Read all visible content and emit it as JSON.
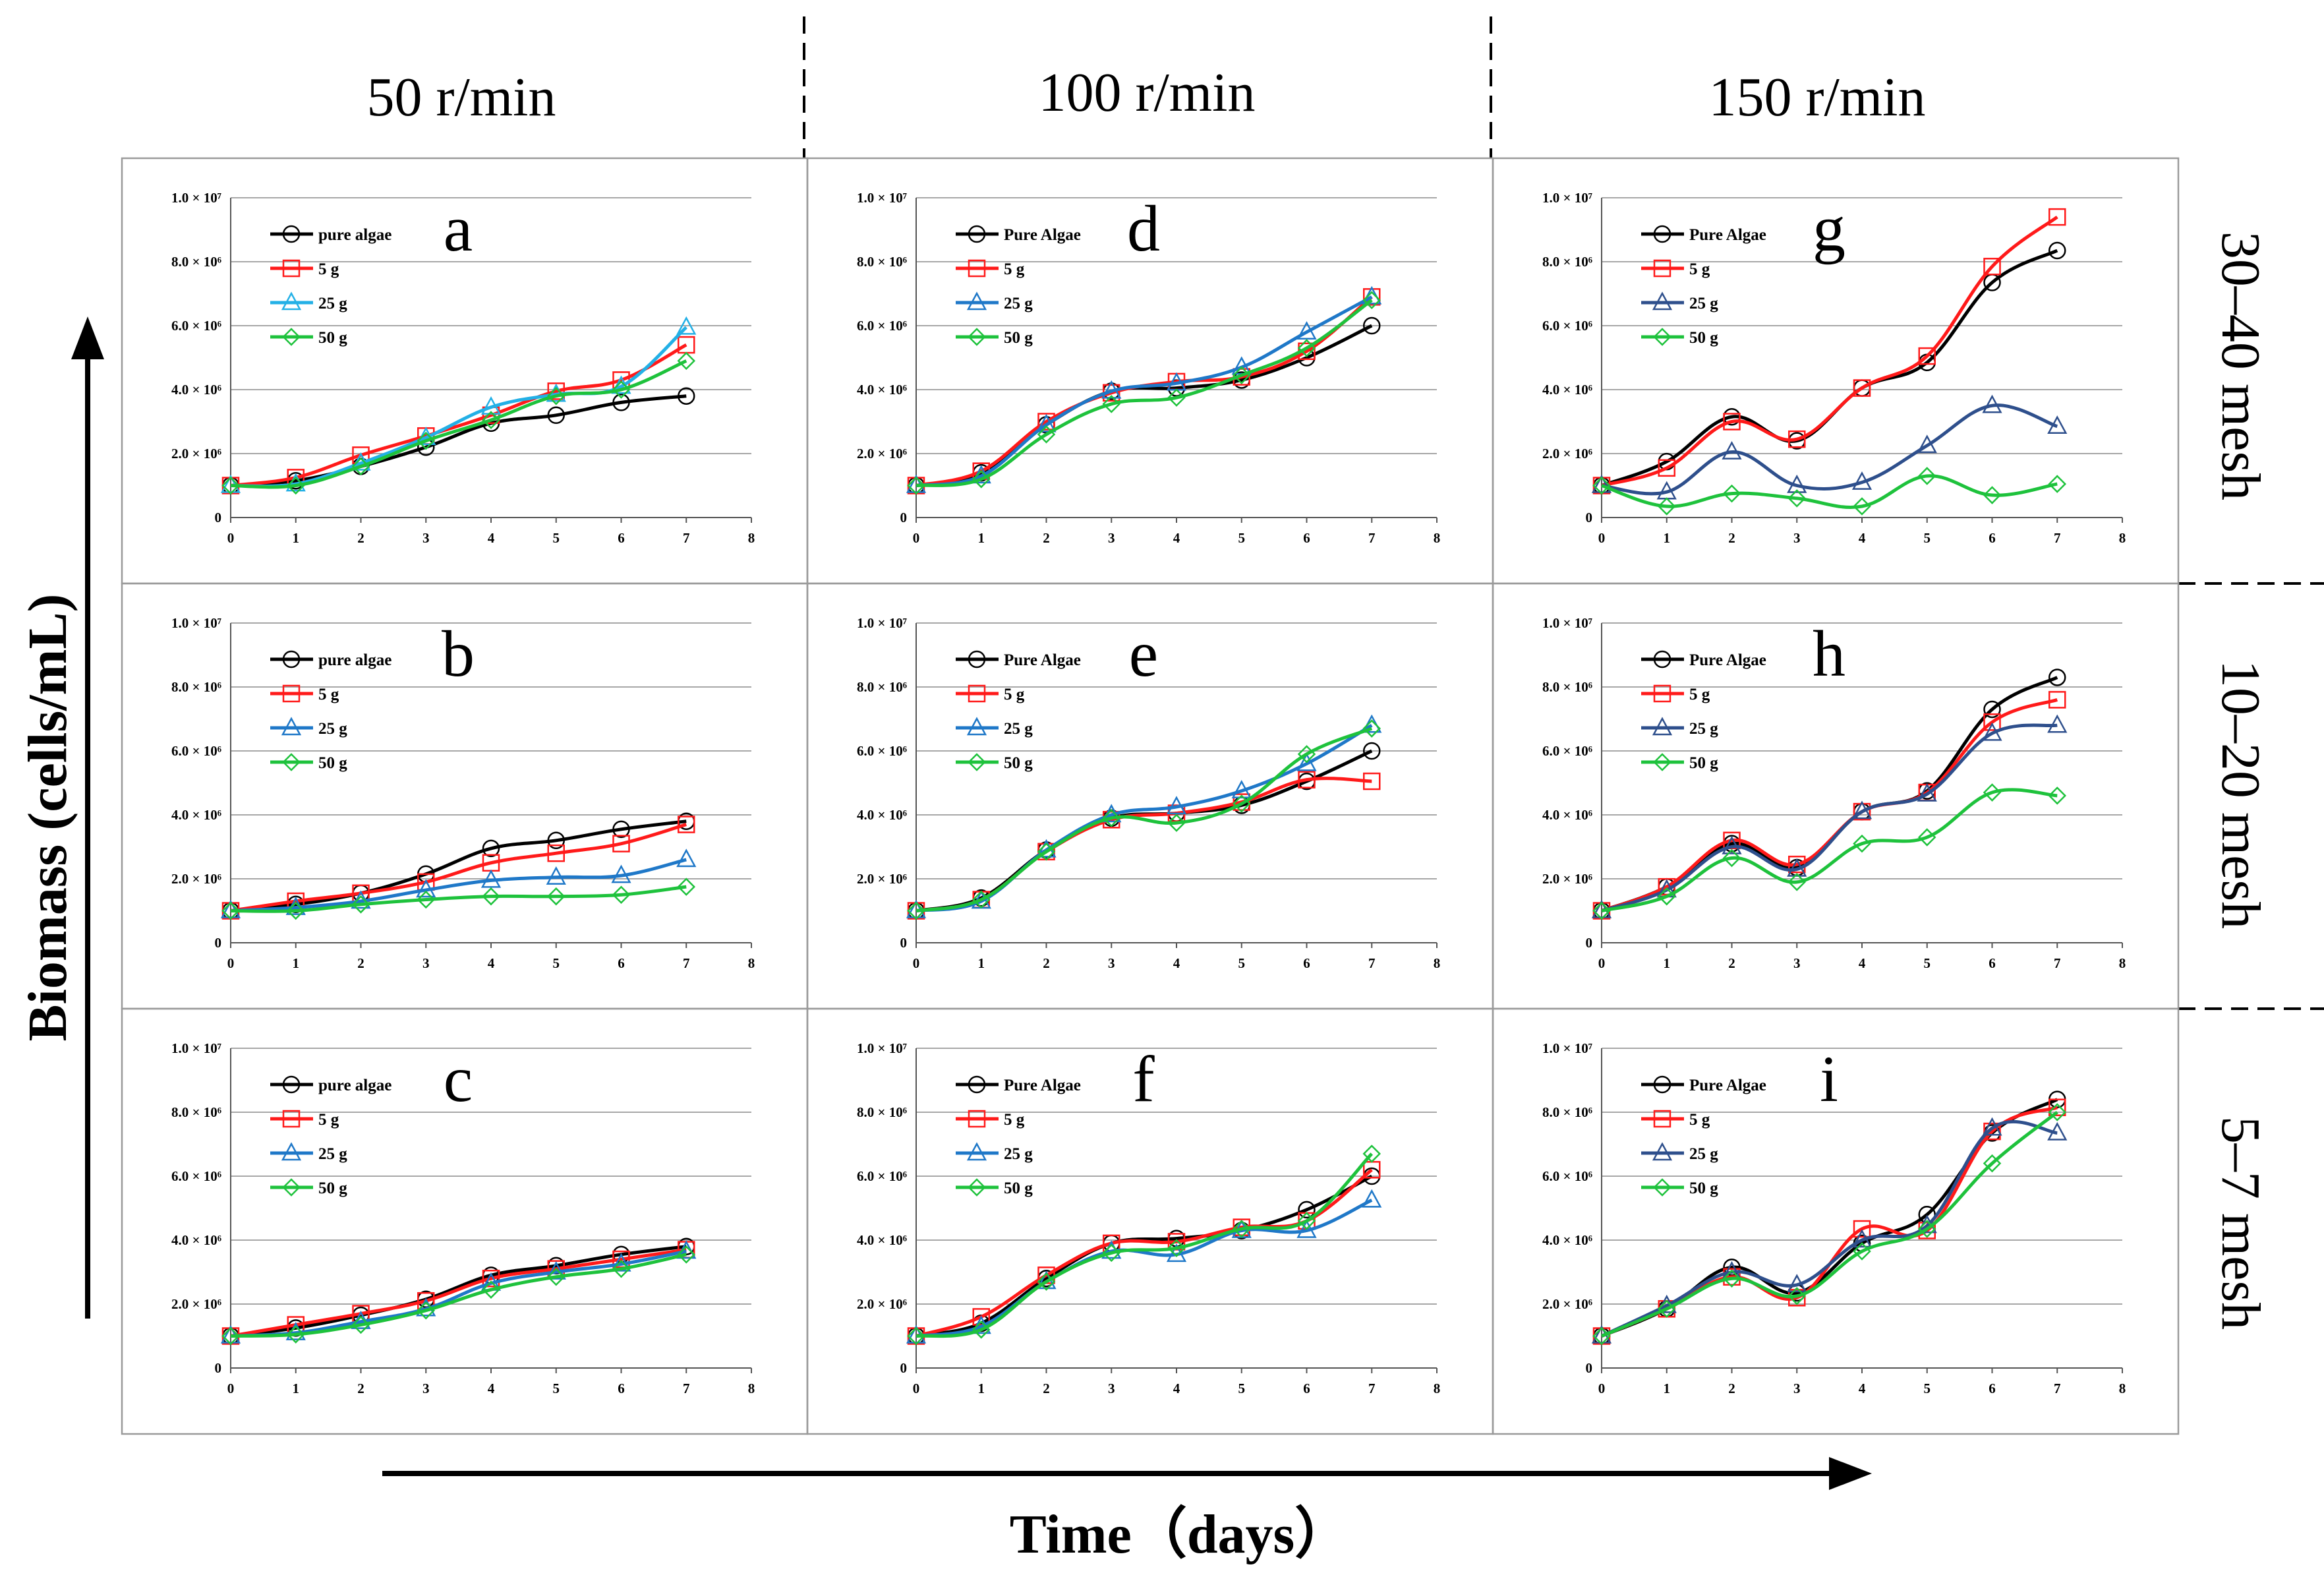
{
  "labels": {
    "column_headers": [
      "50 r/min",
      "100 r/min",
      "150 r/min"
    ],
    "row_headers": [
      "30–40 mesh",
      "10–20 mesh",
      "5–7 mesh"
    ],
    "y_axis": "Biomass (cells/mL)",
    "x_axis": "Time（days）"
  },
  "colors": {
    "pure_algae": "#000000",
    "s5": "#ff1a1a",
    "s25": "#1f78c8",
    "s25_light": "#23b0e6",
    "s25_dark": "#2e4f8c",
    "s50": "#1ec23c"
  },
  "chart_data": [
    {
      "type": "line",
      "panel": "a",
      "xlim": [
        0,
        8
      ],
      "ylim": [
        0,
        10000000
      ],
      "x_ticks": [
        "0",
        "1",
        "2",
        "3",
        "4",
        "5",
        "6",
        "7",
        "8"
      ],
      "y_ticks": [
        "0",
        "2.0 × 10⁶",
        "4.0 × 10⁶",
        "6.0 × 10⁶",
        "8.0 × 10⁶",
        "1.0 × 10⁷"
      ],
      "x": [
        0,
        1,
        2,
        3,
        4,
        5,
        6,
        7
      ],
      "series": [
        {
          "name": "pure algae",
          "values": [
            1000000,
            1150000,
            1600000,
            2200000,
            2950000,
            3200000,
            3600000,
            3800000
          ]
        },
        {
          "name": "5 g",
          "values": [
            1000000,
            1250000,
            1950000,
            2550000,
            3200000,
            3950000,
            4300000,
            5400000
          ]
        },
        {
          "name": "25 g",
          "values": [
            1000000,
            1050000,
            1700000,
            2500000,
            3450000,
            3850000,
            4100000,
            5950000
          ]
        },
        {
          "name": "50 g",
          "values": [
            1000000,
            1000000,
            1600000,
            2400000,
            3050000,
            3800000,
            4000000,
            4900000
          ]
        }
      ]
    },
    {
      "type": "line",
      "panel": "b",
      "xlim": [
        0,
        8
      ],
      "ylim": [
        0,
        10000000
      ],
      "x_ticks": [
        "0",
        "1",
        "2",
        "3",
        "4",
        "5",
        "6",
        "7",
        "8"
      ],
      "y_ticks": [
        "0",
        "2.0 × 10⁶",
        "4.0 × 10⁶",
        "6.0 × 10⁶",
        "8.0 × 10⁶",
        "1.0 × 10⁷"
      ],
      "x": [
        0,
        1,
        2,
        3,
        4,
        5,
        6,
        7
      ],
      "series": [
        {
          "name": "pure algae",
          "values": [
            1000000,
            1200000,
            1550000,
            2150000,
            2950000,
            3200000,
            3550000,
            3800000
          ]
        },
        {
          "name": "5 g",
          "values": [
            1000000,
            1300000,
            1550000,
            1900000,
            2500000,
            2800000,
            3100000,
            3700000
          ]
        },
        {
          "name": "25 g",
          "values": [
            1000000,
            1100000,
            1300000,
            1650000,
            1950000,
            2050000,
            2100000,
            2600000
          ]
        },
        {
          "name": "50 g",
          "values": [
            1000000,
            1000000,
            1200000,
            1350000,
            1450000,
            1450000,
            1500000,
            1750000
          ]
        }
      ]
    },
    {
      "type": "line",
      "panel": "c",
      "xlim": [
        0,
        8
      ],
      "ylim": [
        0,
        10000000
      ],
      "x_ticks": [
        "0",
        "1",
        "2",
        "3",
        "4",
        "5",
        "6",
        "7",
        "8"
      ],
      "y_ticks": [
        "0",
        "2.0 × 10⁶",
        "4.0 × 10⁶",
        "6.0 × 10⁶",
        "8.0 × 10⁶",
        "1.0 × 10⁷"
      ],
      "x": [
        0,
        1,
        2,
        3,
        4,
        5,
        6,
        7
      ],
      "series": [
        {
          "name": "pure algae",
          "values": [
            1000000,
            1250000,
            1650000,
            2150000,
            2900000,
            3200000,
            3550000,
            3800000
          ]
        },
        {
          "name": "5 g",
          "values": [
            1000000,
            1350000,
            1700000,
            2100000,
            2800000,
            3100000,
            3400000,
            3700000
          ]
        },
        {
          "name": "25 g",
          "values": [
            1000000,
            1100000,
            1450000,
            1850000,
            2650000,
            3000000,
            3250000,
            3650000
          ]
        },
        {
          "name": "50 g",
          "values": [
            1000000,
            1050000,
            1350000,
            1800000,
            2450000,
            2850000,
            3100000,
            3550000
          ]
        }
      ]
    },
    {
      "type": "line",
      "panel": "d",
      "xlim": [
        0,
        8
      ],
      "ylim": [
        0,
        10000000
      ],
      "x_ticks": [
        "0",
        "1",
        "2",
        "3",
        "4",
        "5",
        "6",
        "7",
        "8"
      ],
      "y_ticks": [
        "0",
        "2.0 × 10⁶",
        "4.0 × 10⁶",
        "6.0 × 10⁶",
        "8.0 × 10⁶",
        "1.0 × 10⁷"
      ],
      "x": [
        0,
        1,
        2,
        3,
        4,
        5,
        6,
        7
      ],
      "series": [
        {
          "name": "Pure Algae",
          "values": [
            1000000,
            1400000,
            2900000,
            3950000,
            4050000,
            4300000,
            5000000,
            6000000
          ]
        },
        {
          "name": "5 g",
          "values": [
            1000000,
            1450000,
            3000000,
            3900000,
            4250000,
            4400000,
            5200000,
            6900000
          ]
        },
        {
          "name": "25 g",
          "values": [
            1000000,
            1300000,
            2900000,
            3950000,
            4200000,
            4700000,
            5800000,
            6900000
          ]
        },
        {
          "name": "50 g",
          "values": [
            1000000,
            1200000,
            2600000,
            3550000,
            3750000,
            4450000,
            5300000,
            6800000
          ]
        }
      ]
    },
    {
      "type": "line",
      "panel": "e",
      "xlim": [
        0,
        8
      ],
      "ylim": [
        0,
        10000000
      ],
      "x_ticks": [
        "0",
        "1",
        "2",
        "3",
        "4",
        "5",
        "6",
        "7",
        "8"
      ],
      "y_ticks": [
        "0",
        "2.0 × 10⁶",
        "4.0 × 10⁶",
        "6.0 × 10⁶",
        "8.0 × 10⁶",
        "1.0 × 10⁷"
      ],
      "x": [
        0,
        1,
        2,
        3,
        4,
        5,
        6,
        7
      ],
      "series": [
        {
          "name": "Pure Algae",
          "values": [
            1000000,
            1400000,
            2900000,
            3900000,
            4050000,
            4300000,
            5050000,
            6000000
          ]
        },
        {
          "name": "5 g",
          "values": [
            1000000,
            1350000,
            2850000,
            3850000,
            4050000,
            4400000,
            5100000,
            5050000
          ]
        },
        {
          "name": "25 g",
          "values": [
            1000000,
            1300000,
            2900000,
            4000000,
            4250000,
            4750000,
            5600000,
            6800000
          ]
        },
        {
          "name": "50 g",
          "values": [
            1000000,
            1350000,
            2850000,
            3900000,
            3750000,
            4350000,
            5900000,
            6700000
          ]
        }
      ]
    },
    {
      "type": "line",
      "panel": "f",
      "xlim": [
        0,
        8
      ],
      "ylim": [
        0,
        10000000
      ],
      "x_ticks": [
        "0",
        "1",
        "2",
        "3",
        "4",
        "5",
        "6",
        "7",
        "8"
      ],
      "y_ticks": [
        "0",
        "2.0 × 10⁶",
        "4.0 × 10⁶",
        "6.0 × 10⁶",
        "8.0 × 10⁶",
        "1.0 × 10⁷"
      ],
      "x": [
        0,
        1,
        2,
        3,
        4,
        5,
        6,
        7
      ],
      "series": [
        {
          "name": "Pure Algae",
          "values": [
            1000000,
            1400000,
            2800000,
            3900000,
            4050000,
            4300000,
            4950000,
            6000000
          ]
        },
        {
          "name": "5 g",
          "values": [
            1000000,
            1600000,
            2900000,
            3900000,
            3950000,
            4400000,
            4600000,
            6200000
          ]
        },
        {
          "name": "25 g",
          "values": [
            1000000,
            1300000,
            2700000,
            3650000,
            3550000,
            4300000,
            4300000,
            5250000
          ]
        },
        {
          "name": "50 g",
          "values": [
            1000000,
            1200000,
            2700000,
            3600000,
            3750000,
            4350000,
            4600000,
            6700000
          ]
        }
      ]
    },
    {
      "type": "line",
      "panel": "g",
      "xlim": [
        0,
        8
      ],
      "ylim": [
        0,
        10000000
      ],
      "x_ticks": [
        "0",
        "1",
        "2",
        "3",
        "4",
        "5",
        "6",
        "7",
        "8"
      ],
      "y_ticks": [
        "0",
        "2.0 × 10⁶",
        "4.0 × 10⁶",
        "6.0 × 10⁶",
        "8.0 × 10⁶",
        "1.0 × 10⁷"
      ],
      "x": [
        0,
        1,
        2,
        3,
        4,
        5,
        6,
        7
      ],
      "series": [
        {
          "name": "Pure Algae",
          "values": [
            1000000,
            1750000,
            3150000,
            2400000,
            4050000,
            4850000,
            7350000,
            8350000
          ]
        },
        {
          "name": "5 g",
          "values": [
            1000000,
            1550000,
            3000000,
            2450000,
            4050000,
            5050000,
            7850000,
            9400000
          ]
        },
        {
          "name": "25 g",
          "values": [
            1000000,
            800000,
            2050000,
            1000000,
            1100000,
            2250000,
            3500000,
            2850000
          ]
        },
        {
          "name": "50 g",
          "values": [
            1000000,
            350000,
            750000,
            600000,
            350000,
            1300000,
            700000,
            1050000
          ]
        }
      ]
    },
    {
      "type": "line",
      "panel": "h",
      "xlim": [
        0,
        8
      ],
      "ylim": [
        0,
        10000000
      ],
      "x_ticks": [
        "0",
        "1",
        "2",
        "3",
        "4",
        "5",
        "6",
        "7",
        "8"
      ],
      "y_ticks": [
        "0",
        "2.0 × 10⁶",
        "4.0 × 10⁶",
        "6.0 × 10⁶",
        "8.0 × 10⁶",
        "1.0 × 10⁷"
      ],
      "x": [
        0,
        1,
        2,
        3,
        4,
        5,
        6,
        7
      ],
      "series": [
        {
          "name": "Pure Algae",
          "values": [
            1000000,
            1750000,
            3100000,
            2350000,
            4100000,
            4750000,
            7300000,
            8300000
          ]
        },
        {
          "name": "5 g",
          "values": [
            1000000,
            1750000,
            3200000,
            2450000,
            4100000,
            4700000,
            6900000,
            7600000
          ]
        },
        {
          "name": "25 g",
          "values": [
            1000000,
            1650000,
            3000000,
            2300000,
            4100000,
            4650000,
            6550000,
            6800000
          ]
        },
        {
          "name": "50 g",
          "values": [
            1000000,
            1450000,
            2650000,
            1900000,
            3100000,
            3300000,
            4700000,
            4600000
          ]
        }
      ]
    },
    {
      "type": "line",
      "panel": "i",
      "xlim": [
        0,
        8
      ],
      "ylim": [
        0,
        10000000
      ],
      "x_ticks": [
        "0",
        "1",
        "2",
        "3",
        "4",
        "5",
        "6",
        "7",
        "8"
      ],
      "y_ticks": [
        "0",
        "2.0 × 10⁶",
        "4.0 × 10⁶",
        "6.0 × 10⁶",
        "8.0 × 10⁶",
        "1.0 × 10⁷"
      ],
      "x": [
        0,
        1,
        2,
        3,
        4,
        5,
        6,
        7
      ],
      "series": [
        {
          "name": "Pure Algae",
          "values": [
            1000000,
            1850000,
            3150000,
            2350000,
            3900000,
            4800000,
            7350000,
            8400000
          ]
        },
        {
          "name": "5 g",
          "values": [
            1000000,
            1850000,
            2850000,
            2200000,
            4350000,
            4300000,
            7400000,
            8150000
          ]
        },
        {
          "name": "25 g",
          "values": [
            1000000,
            1950000,
            3000000,
            2600000,
            4000000,
            4450000,
            7500000,
            7350000
          ]
        },
        {
          "name": "50 g",
          "values": [
            1000000,
            1850000,
            2800000,
            2250000,
            3650000,
            4350000,
            6400000,
            8000000
          ]
        }
      ]
    }
  ]
}
